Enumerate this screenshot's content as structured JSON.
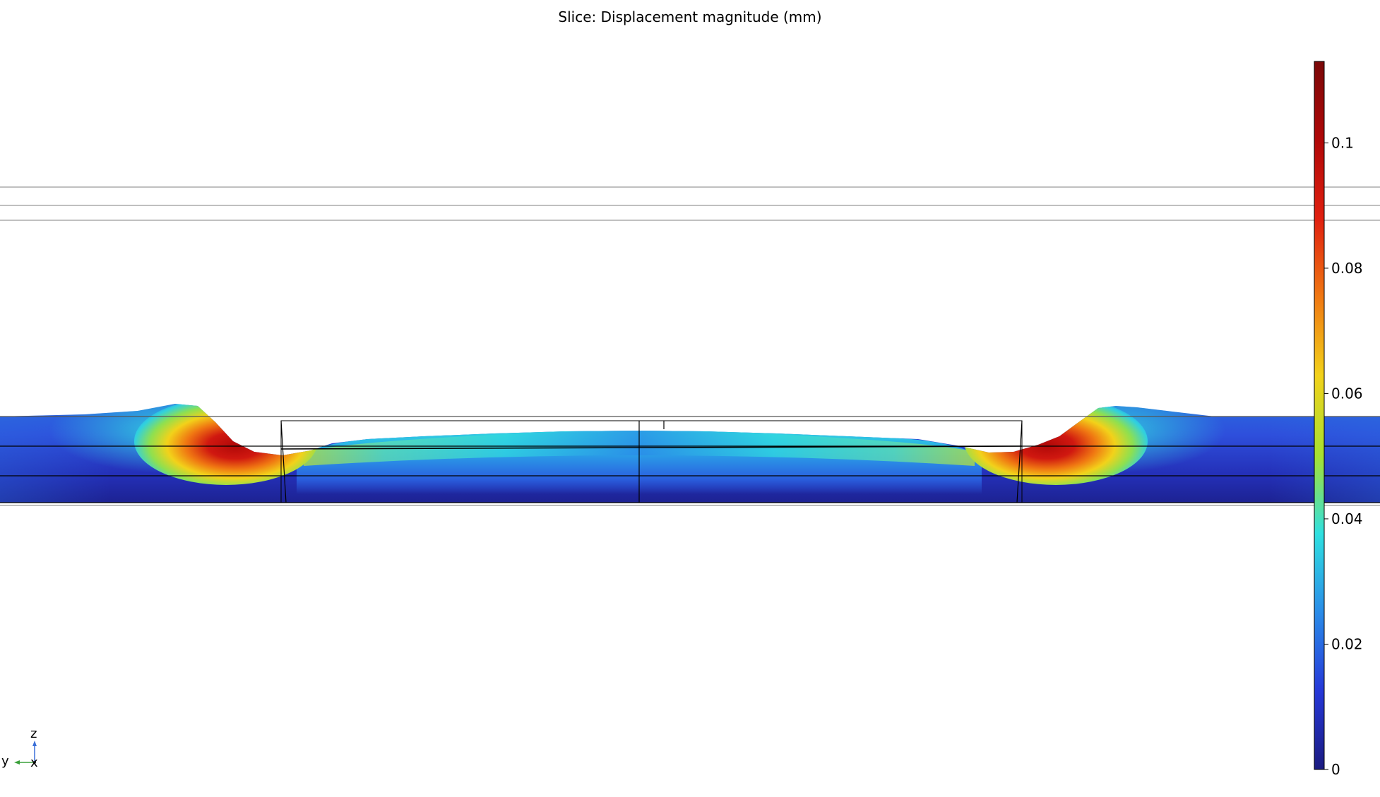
{
  "title": "Slice: Displacement magnitude (mm)",
  "colorbar": {
    "min": 0,
    "max": 0.113,
    "ticks": [
      {
        "value": 0,
        "label": "0"
      },
      {
        "value": 0.02,
        "label": "0.02"
      },
      {
        "value": 0.04,
        "label": "0.04"
      },
      {
        "value": 0.06,
        "label": "0.06"
      },
      {
        "value": 0.08,
        "label": "0.08"
      },
      {
        "value": 0.1,
        "label": "0.1"
      }
    ],
    "colormap": [
      "#1b1b80",
      "#2638d8",
      "#2a8ce8",
      "#2fe0e0",
      "#a8e030",
      "#f2d21a",
      "#f07812",
      "#e02010",
      "#b00808",
      "#7a0808"
    ]
  },
  "axes_triad": {
    "z_label": "z",
    "y_label": "y",
    "x_label": "x",
    "z_color": "#3a6fd8",
    "y_color": "#3aa03a"
  }
}
